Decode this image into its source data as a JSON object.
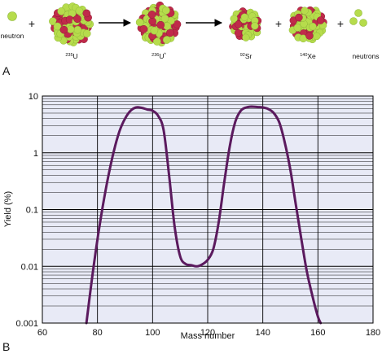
{
  "panel_a": {
    "label": "A",
    "items": [
      {
        "label": "neutron"
      },
      {
        "sup": "235",
        "text": "U",
        "star": ""
      },
      {
        "sup": "236",
        "text": "U",
        "star": "*"
      },
      {
        "sup": "92",
        "text": "Sr",
        "star": ""
      },
      {
        "sup": "140",
        "text": "Xe",
        "star": ""
      },
      {
        "label": "neutrons"
      }
    ],
    "plus": "+"
  },
  "panel_b": {
    "label": "B",
    "colors": {
      "plot_bg": "#e8eaf6",
      "curve": "#5b1a5e",
      "grid": "#000000",
      "proton": "#c02a4a",
      "neutron": "#b6dc4c"
    }
  },
  "chart_data": {
    "type": "line",
    "title": "",
    "xlabel": "Mass number",
    "ylabel": "Yield (%)",
    "xlim": [
      60,
      180
    ],
    "ylim": [
      0.001,
      10
    ],
    "yscale": "log",
    "grid": true,
    "xticks": [
      60,
      80,
      100,
      120,
      140,
      160,
      180
    ],
    "yticks": [
      {
        "v": 0.001,
        "label": "0.001"
      },
      {
        "v": 0.01,
        "label": "0.01"
      },
      {
        "v": 0.1,
        "label": "0.1"
      },
      {
        "v": 1,
        "label": "1"
      },
      {
        "v": 10,
        "label": "10"
      }
    ],
    "series": [
      {
        "x": [
          76,
          78,
          80,
          82,
          84,
          86,
          88,
          90,
          92,
          94,
          96,
          98,
          100,
          102,
          104,
          106,
          108,
          110,
          112,
          114,
          116,
          118,
          120,
          122,
          124,
          126,
          128,
          130,
          132,
          134,
          136,
          138,
          140,
          142,
          144,
          146,
          148,
          150,
          152,
          154,
          156,
          158,
          160,
          161
        ],
        "y": [
          0.001,
          0.006,
          0.03,
          0.12,
          0.4,
          1.1,
          2.4,
          4.0,
          5.5,
          6.3,
          6.2,
          5.8,
          5.5,
          4.5,
          2.5,
          0.4,
          0.05,
          0.015,
          0.011,
          0.0105,
          0.01,
          0.0108,
          0.013,
          0.02,
          0.06,
          0.3,
          1.3,
          3.5,
          5.5,
          6.3,
          6.5,
          6.4,
          6.3,
          5.9,
          5.0,
          3.4,
          1.5,
          0.5,
          0.12,
          0.03,
          0.008,
          0.003,
          0.0013,
          0.001
        ]
      }
    ]
  }
}
